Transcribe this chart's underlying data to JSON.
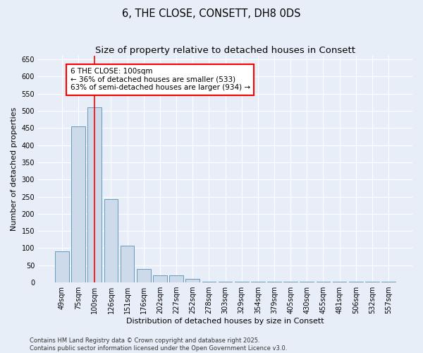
{
  "title": "6, THE CLOSE, CONSETT, DH8 0DS",
  "subtitle": "Size of property relative to detached houses in Consett",
  "xlabel": "Distribution of detached houses by size in Consett",
  "ylabel": "Number of detached properties",
  "bar_color": "#cddaea",
  "bar_edge_color": "#6699bb",
  "bar_linewidth": 0.7,
  "categories": [
    "49sqm",
    "75sqm",
    "100sqm",
    "126sqm",
    "151sqm",
    "176sqm",
    "202sqm",
    "227sqm",
    "252sqm",
    "278sqm",
    "303sqm",
    "329sqm",
    "354sqm",
    "379sqm",
    "405sqm",
    "430sqm",
    "455sqm",
    "481sqm",
    "506sqm",
    "532sqm",
    "557sqm"
  ],
  "values": [
    90,
    455,
    510,
    243,
    108,
    40,
    20,
    20,
    10,
    2,
    2,
    2,
    2,
    2,
    2,
    2,
    2,
    2,
    2,
    2,
    2
  ],
  "ylim": [
    0,
    660
  ],
  "yticks": [
    0,
    50,
    100,
    150,
    200,
    250,
    300,
    350,
    400,
    450,
    500,
    550,
    600,
    650
  ],
  "red_line_index": 2,
  "annotation_text": "6 THE CLOSE: 100sqm\n← 36% of detached houses are smaller (533)\n63% of semi-detached houses are larger (934) →",
  "footer_line1": "Contains HM Land Registry data © Crown copyright and database right 2025.",
  "footer_line2": "Contains public sector information licensed under the Open Government Licence v3.0.",
  "background_color": "#e8eef8",
  "plot_bg_color": "#e8eef8",
  "grid_color": "#ffffff",
  "title_fontsize": 10.5,
  "subtitle_fontsize": 9.5,
  "axis_label_fontsize": 8,
  "tick_fontsize": 7,
  "annotation_fontsize": 7.5,
  "footer_fontsize": 6
}
